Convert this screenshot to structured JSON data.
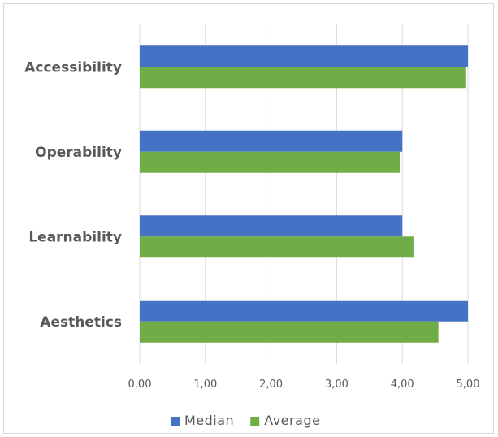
{
  "chart_data": {
    "type": "bar",
    "orientation": "horizontal",
    "categories": [
      "Aesthetics",
      "Learnability",
      "Operability",
      "Accessibility"
    ],
    "series": [
      {
        "name": "Median",
        "values": [
          5.0,
          4.0,
          4.0,
          5.0
        ],
        "color": "#4472c4"
      },
      {
        "name": "Average",
        "values": [
          4.55,
          4.17,
          3.96,
          4.96
        ],
        "color": "#70ad47"
      }
    ],
    "x_ticks": [
      "0,00",
      "1,00",
      "2,00",
      "3,00",
      "4,00",
      "5,00"
    ],
    "xlim": [
      0,
      5
    ],
    "grid": true,
    "legend_position": "bottom",
    "title": "",
    "xlabel": "",
    "ylabel": ""
  }
}
